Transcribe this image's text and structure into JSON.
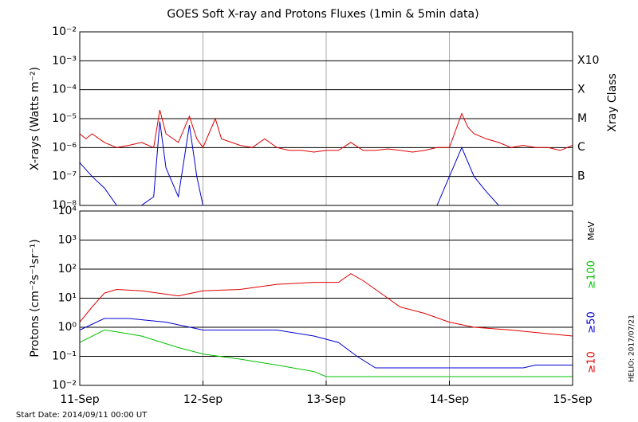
{
  "chart_data": [
    {
      "type": "line",
      "title": "GOES Soft X-ray and Protons Fluxes   (1min & 5min data)",
      "ylabel": "X-rays (Watts m⁻²)",
      "right_label": "Xray Class",
      "log_y": true,
      "grid": true,
      "xlim": [
        0,
        4
      ],
      "ylim": [
        1e-08,
        0.01
      ],
      "yticks": [
        {
          "value": 1e-08,
          "label": "10⁻⁸"
        },
        {
          "value": 1e-07,
          "label": "10⁻⁷"
        },
        {
          "value": 1e-06,
          "label": "10⁻⁶"
        },
        {
          "value": 1e-05,
          "label": "10⁻⁵"
        },
        {
          "value": 0.0001,
          "label": "10⁻⁴"
        },
        {
          "value": 0.001,
          "label": "10⁻³"
        },
        {
          "value": 0.01,
          "label": "10⁻²"
        }
      ],
      "xray_classes": [
        {
          "value": 1e-07,
          "label": "B"
        },
        {
          "value": 1e-06,
          "label": "C"
        },
        {
          "value": 1e-05,
          "label": "M"
        },
        {
          "value": 0.0001,
          "label": "X"
        },
        {
          "value": 0.001,
          "label": "X10"
        }
      ],
      "series": [
        {
          "color": "#e00000",
          "x": [
            0,
            0.05,
            0.1,
            0.2,
            0.3,
            0.4,
            0.5,
            0.6,
            0.65,
            0.7,
            0.8,
            0.89,
            0.95,
            1.0,
            1.1,
            1.15,
            1.3,
            1.4,
            1.5,
            1.6,
            1.7,
            1.8,
            1.9,
            2.0,
            2.1,
            2.2,
            2.3,
            2.4,
            2.5,
            2.6,
            2.7,
            2.8,
            2.9,
            3.0,
            3.1,
            3.15,
            3.2,
            3.3,
            3.4,
            3.5,
            3.6,
            3.7,
            3.8,
            3.9,
            4.0
          ],
          "values": [
            3e-06,
            2e-06,
            3e-06,
            1.5e-06,
            1e-06,
            1.2e-06,
            1.5e-06,
            1e-06,
            2e-05,
            3e-06,
            1.5e-06,
            1.2e-05,
            2e-06,
            1e-06,
            1e-05,
            2e-06,
            1.2e-06,
            1e-06,
            2e-06,
            1e-06,
            8e-07,
            8e-07,
            7e-07,
            8e-07,
            8e-07,
            1.5e-06,
            8e-07,
            8e-07,
            9e-07,
            8e-07,
            7e-07,
            8e-07,
            1e-06,
            1e-06,
            1.5e-05,
            5e-06,
            3e-06,
            2e-06,
            1.5e-06,
            1e-06,
            1.2e-06,
            1e-06,
            1e-06,
            8e-07,
            1.2e-06
          ]
        },
        {
          "color": "#0000d0",
          "x": [
            0,
            0.1,
            0.2,
            0.3,
            0.5,
            0.6,
            0.65,
            0.7,
            0.8,
            0.89,
            0.95,
            1.0,
            1.1,
            1.2,
            1.5,
            2.0,
            2.3,
            2.5,
            2.7,
            2.9,
            3.0,
            3.1,
            3.2,
            3.3,
            3.4,
            4.0
          ],
          "values": [
            3e-07,
            1e-07,
            4e-08,
            1e-08,
            1e-08,
            2e-08,
            8e-06,
            2e-07,
            2e-08,
            6e-06,
            1e-07,
            1e-08,
            1e-08,
            1e-08,
            1e-08,
            1e-08,
            1e-08,
            1e-08,
            1e-08,
            1e-08,
            1e-07,
            1e-06,
            1e-07,
            3e-08,
            1e-08,
            1e-08
          ]
        }
      ]
    },
    {
      "type": "line",
      "ylabel": "Protons (cm⁻²s⁻¹sr⁻¹)",
      "unit": "MeV",
      "log_y": true,
      "grid": true,
      "threshold": 10,
      "start_date": "Start Date: 2014/09/11 00:00 UT",
      "stamp": "HELIO: 2017/07/21",
      "xlim": [
        0,
        4
      ],
      "ylim": [
        0.01,
        10000
      ],
      "xticks": [
        {
          "value": 0,
          "label": "11-Sep"
        },
        {
          "value": 1,
          "label": "12-Sep"
        },
        {
          "value": 2,
          "label": "13-Sep"
        },
        {
          "value": 3,
          "label": "14-Sep"
        },
        {
          "value": 4,
          "label": "15-Sep"
        }
      ],
      "yticks": [
        {
          "value": 0.01,
          "label": "10⁻²"
        },
        {
          "value": 0.1,
          "label": "10⁻¹"
        },
        {
          "value": 1,
          "label": "10⁰"
        },
        {
          "value": 10,
          "label": "10¹"
        },
        {
          "value": 100,
          "label": "10²"
        },
        {
          "value": 1000,
          "label": "10³"
        },
        {
          "value": 10000,
          "label": "10⁴"
        }
      ],
      "series": [
        {
          "name": "≥10",
          "color": "#e00000",
          "x": [
            0,
            0.1,
            0.2,
            0.3,
            0.5,
            0.8,
            1.0,
            1.3,
            1.6,
            1.9,
            2.1,
            2.2,
            2.3,
            2.5,
            2.6,
            2.8,
            3.0,
            3.2,
            3.5,
            3.8,
            4.0
          ],
          "values": [
            1.5,
            5,
            15,
            20,
            18,
            12,
            18,
            20,
            30,
            35,
            35,
            70,
            40,
            10,
            5,
            3,
            1.5,
            1.0,
            0.8,
            0.6,
            0.5
          ]
        },
        {
          "name": "≥50",
          "color": "#0000d0",
          "x": [
            0,
            0.2,
            0.4,
            0.7,
            1.0,
            1.3,
            1.6,
            1.9,
            2.1,
            2.25,
            2.4,
            2.6,
            3.0,
            3.6,
            3.7,
            4.0
          ],
          "values": [
            0.8,
            2,
            2,
            1.5,
            0.8,
            0.8,
            0.8,
            0.5,
            0.3,
            0.1,
            0.04,
            0.04,
            0.04,
            0.04,
            0.05,
            0.05
          ]
        },
        {
          "name": "≥100",
          "color": "#00c000",
          "x": [
            0,
            0.2,
            0.3,
            0.5,
            0.8,
            1.0,
            1.3,
            1.6,
            1.9,
            2.0,
            2.3,
            3.0,
            3.4,
            4.0
          ],
          "values": [
            0.3,
            0.8,
            0.7,
            0.5,
            0.2,
            0.12,
            0.08,
            0.05,
            0.03,
            0.02,
            0.02,
            0.02,
            0.02,
            0.02
          ]
        }
      ]
    }
  ]
}
